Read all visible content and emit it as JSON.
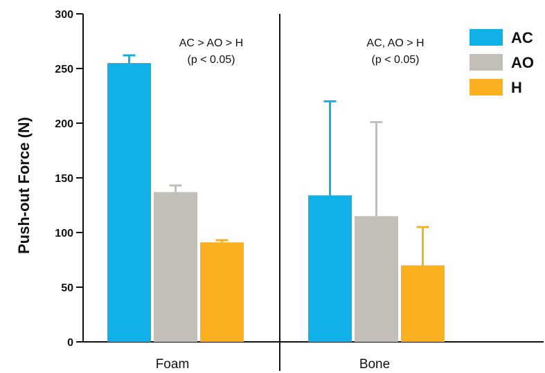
{
  "chart_data": {
    "type": "bar",
    "title": "",
    "xlabel": "",
    "ylabel": "Push-out Force (N)",
    "ylim": [
      0,
      300
    ],
    "yticks": [
      0,
      50,
      100,
      150,
      200,
      250,
      300
    ],
    "categories": [
      "Foam",
      "Bone"
    ],
    "series": [
      {
        "name": "AC",
        "color": "#11B0E8",
        "values": [
          255,
          134
        ],
        "errors": [
          7,
          86
        ]
      },
      {
        "name": "AO",
        "color": "#C3BFB8",
        "values": [
          137,
          115
        ],
        "errors": [
          6,
          86
        ]
      },
      {
        "name": "H",
        "color": "#FBB01F",
        "values": [
          91,
          70
        ],
        "errors": [
          2,
          35
        ]
      }
    ],
    "annotations": [
      {
        "category": "Foam",
        "lines": [
          "AC > AO > H",
          "(p < 0.05)"
        ]
      },
      {
        "category": "Bone",
        "lines": [
          "AC, AO > H",
          "(p < 0.05)"
        ]
      }
    ],
    "legend": "top-right",
    "grid": false
  }
}
